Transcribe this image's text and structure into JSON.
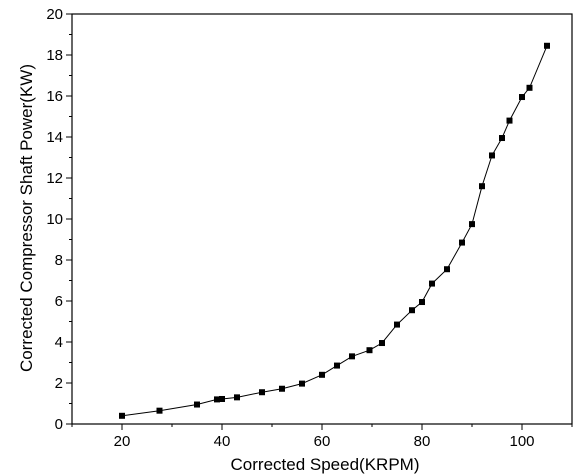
{
  "chart_data": {
    "type": "line",
    "title": "",
    "xlabel": "Corrected Speed(KRPM)",
    "ylabel": "Corrected Compressor Shaft Power(KW)",
    "xlim": [
      10,
      110
    ],
    "ylim": [
      0,
      20
    ],
    "x_ticks": [
      20,
      40,
      60,
      80,
      100
    ],
    "y_ticks": [
      0,
      2,
      4,
      6,
      8,
      10,
      12,
      14,
      16,
      18,
      20
    ],
    "grid": false,
    "legend": "none",
    "marker": "square",
    "color": "#000000",
    "series": [
      {
        "points": [
          [
            20,
            0.4
          ],
          [
            27.5,
            0.65
          ],
          [
            35,
            0.95
          ],
          [
            39,
            1.2
          ],
          [
            40,
            1.22
          ],
          [
            43,
            1.3
          ],
          [
            48,
            1.55
          ],
          [
            52,
            1.72
          ],
          [
            56,
            1.97
          ],
          [
            60,
            2.4
          ],
          [
            63,
            2.85
          ],
          [
            66,
            3.3
          ],
          [
            69.5,
            3.6
          ],
          [
            72,
            3.95
          ],
          [
            75,
            4.85
          ],
          [
            78,
            5.55
          ],
          [
            80,
            5.95
          ],
          [
            82,
            6.85
          ],
          [
            85,
            7.55
          ],
          [
            88,
            8.85
          ],
          [
            90,
            9.75
          ],
          [
            92,
            11.6
          ],
          [
            94,
            13.1
          ],
          [
            96,
            13.95
          ],
          [
            97.5,
            14.8
          ],
          [
            100,
            15.95
          ],
          [
            101.5,
            16.4
          ],
          [
            105,
            18.45
          ]
        ]
      }
    ]
  }
}
